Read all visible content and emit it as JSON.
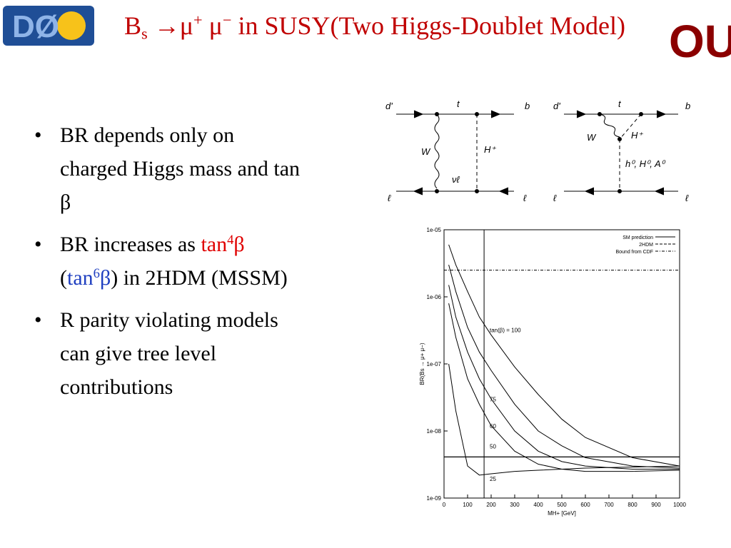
{
  "header": {
    "logo_left": "DØ",
    "logo_right": "OU",
    "title": [
      "B",
      "s",
      " →μ",
      "+",
      " μ",
      "−",
      " in SUSY(Two Higgs-Doublet Model)"
    ]
  },
  "bullets": [
    [
      "BR depends only on charged Higgs mass and tan β"
    ],
    [
      "BR increases as ",
      "tan",
      "4",
      "β",
      " (",
      "tan",
      "6",
      "β",
      ") in 2HDM (MSSM)"
    ],
    [
      "R parity violating models can give tree level contributions"
    ]
  ],
  "diagrams": [
    {
      "labels": [
        "d'",
        "t",
        "b",
        "W",
        "H⁺",
        "νℓ",
        "ℓ",
        "ℓ"
      ]
    },
    {
      "labels": [
        "d'",
        "t",
        "b",
        "W",
        "H⁺",
        "h⁰, H⁰, A⁰",
        "ℓ",
        "ℓ"
      ]
    }
  ],
  "plot": {
    "type": "line",
    "log_y": true,
    "y_label": "BR(Bs → μ+ μ−)",
    "x_label": "MH+ [GeV]",
    "xlim": [
      0,
      1000
    ],
    "ylim": [
      1e-09,
      1e-05
    ],
    "xticks": [
      0,
      100,
      200,
      300,
      400,
      500,
      600,
      700,
      800,
      900,
      1000
    ],
    "yticks": [
      {
        "value": 1e-05,
        "label": "1e-05"
      },
      {
        "value": 1e-06,
        "label": "1e-06"
      },
      {
        "value": 1e-07,
        "label": "1e-07"
      },
      {
        "value": 1e-08,
        "label": "1e-08"
      },
      {
        "value": 1e-09,
        "label": "1e-09"
      }
    ],
    "legend": [
      "SM prediction",
      "2HDM",
      "Bound from CDF"
    ],
    "sm_prediction": 4.1e-09,
    "cdf_bound": 2.5e-06,
    "vline_x": 170,
    "x": [
      20,
      50,
      100,
      150,
      200,
      300,
      400,
      500,
      600,
      800,
      1000
    ],
    "series": [
      {
        "name": "tan(β) = 100",
        "values": [
          6e-06,
          3e-06,
          1.2e-06,
          5e-07,
          2.7e-07,
          9e-08,
          3.5e-08,
          1.5e-08,
          8e-09,
          4e-09,
          3e-09
        ]
      },
      {
        "name": "75",
        "values": [
          3e-06,
          1.2e-06,
          3.5e-07,
          1.5e-07,
          8e-08,
          2.5e-08,
          1e-08,
          6e-09,
          4e-09,
          3e-09,
          2.8e-09
        ]
      },
      {
        "name": "60",
        "values": [
          1.5e-06,
          5e-07,
          1.5e-07,
          6e-08,
          3e-08,
          1e-08,
          5e-09,
          3.5e-09,
          3e-09,
          2.7e-09,
          2.7e-09
        ]
      },
      {
        "name": "50",
        "values": [
          8e-07,
          2.5e-07,
          6e-08,
          2.5e-08,
          1.2e-08,
          5e-09,
          3.2e-09,
          2.7e-09,
          2.5e-09,
          2.5e-09,
          2.6e-09
        ]
      },
      {
        "name": "25",
        "values": [
          1e-07,
          2e-08,
          3e-09,
          2.2e-09,
          2.3e-09,
          2.5e-09,
          2.6e-09,
          2.7e-09,
          2.8e-09,
          2.9e-09,
          3e-09
        ]
      }
    ]
  }
}
